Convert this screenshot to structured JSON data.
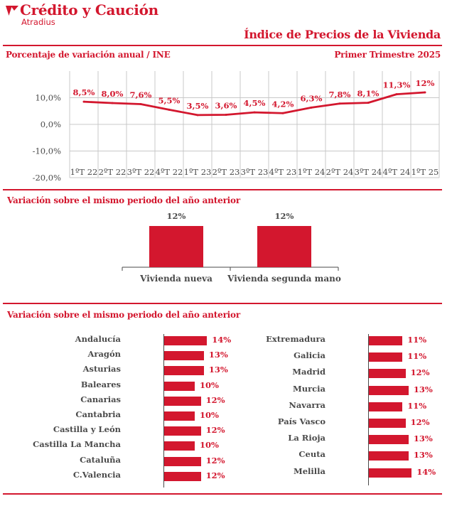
{
  "header": {
    "brand_name": "Crédito y Caución",
    "brand_sub": "Atradius",
    "report_title": "Índice de Precios de la Vivienda"
  },
  "section1": {
    "title": "Porcentaje de variación anual / INE",
    "period": "Primer Trimestre 2025"
  },
  "section2": {
    "title": "Variación sobre el mismo periodo del año anterior"
  },
  "section3": {
    "title": "Variación sobre el mismo periodo del año anterior"
  },
  "colors": {
    "accent": "#d3172e",
    "text": "#4a4a4a",
    "grid": "#c8c8c8"
  },
  "chart_data": [
    {
      "type": "line",
      "categories": [
        "1ºT 22",
        "2ºT 22",
        "3ºT 22",
        "4ºT 22",
        "1ºT 23",
        "2ºT 23",
        "3ºT 23",
        "4ºT 23",
        "1ºT 24",
        "2ºT 24",
        "3ºT 24",
        "4ºT 24",
        "1ºT 25"
      ],
      "values": [
        8.5,
        8.0,
        7.6,
        5.5,
        3.5,
        3.6,
        4.5,
        4.2,
        6.3,
        7.8,
        8.1,
        11.3,
        12
      ],
      "data_labels": [
        "8,5%",
        "8,0%",
        "7,6%",
        "5,5%",
        "3,5%",
        "3,6%",
        "4,5%",
        "4,2%",
        "6,3%",
        "7,8%",
        "8,1%",
        "11,3%",
        "12%"
      ],
      "ylim": [
        -20,
        20
      ],
      "yticks": [
        10,
        0,
        -10,
        -20
      ],
      "ytick_labels": [
        "10,0%",
        "0,0%",
        "-10,0%",
        "-20,0%"
      ],
      "grid": true
    },
    {
      "type": "bar",
      "categories": [
        "Vivienda nueva",
        "Vivienda segunda mano"
      ],
      "values": [
        12,
        12
      ],
      "data_labels": [
        "12%",
        "12%"
      ]
    },
    {
      "type": "bar",
      "orientation": "horizontal",
      "categories": [
        "Andalucía",
        "Aragón",
        "Asturias",
        "Baleares",
        "Canarias",
        "Cantabria",
        "Castilla y León",
        "Castilla La Mancha",
        "Cataluña",
        "C.Valencia"
      ],
      "values": [
        14,
        13,
        13,
        10,
        12,
        10,
        12,
        10,
        12,
        12
      ],
      "data_labels": [
        "14%",
        "13%",
        "13%",
        "10%",
        "12%",
        "10%",
        "12%",
        "10%",
        "12%",
        "12%"
      ]
    },
    {
      "type": "bar",
      "orientation": "horizontal",
      "categories": [
        "Extremadura",
        "Galicia",
        "Madrid",
        "Murcia",
        "Navarra",
        "País Vasco",
        "La Rioja",
        "Ceuta",
        "Melilla"
      ],
      "values": [
        11,
        11,
        12,
        13,
        11,
        12,
        13,
        13,
        14
      ],
      "data_labels": [
        "11%",
        "11%",
        "12%",
        "13%",
        "11%",
        "12%",
        "13%",
        "13%",
        "14%"
      ]
    }
  ]
}
